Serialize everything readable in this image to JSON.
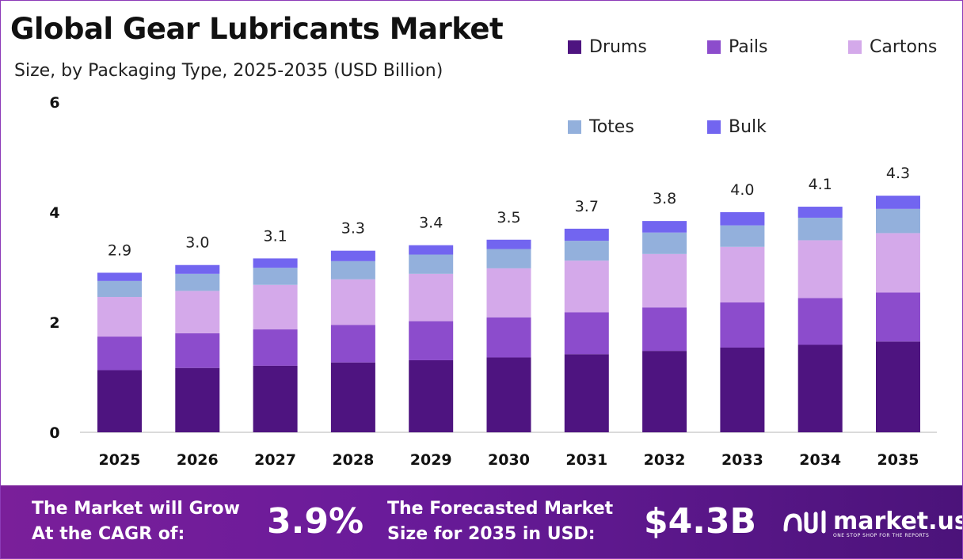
{
  "title": "Global Gear Lubricants Market",
  "subtitle": "Size, by Packaging Type, 2025-2035 (USD Billion)",
  "chart_data": {
    "type": "bar",
    "stacked": true,
    "categories": [
      "2025",
      "2026",
      "2027",
      "2028",
      "2029",
      "2030",
      "2031",
      "2032",
      "2033",
      "2034",
      "2035"
    ],
    "series": [
      {
        "name": "Drums",
        "color": "#4e1480",
        "values": [
          1.13,
          1.17,
          1.21,
          1.27,
          1.31,
          1.36,
          1.42,
          1.48,
          1.54,
          1.59,
          1.65
        ]
      },
      {
        "name": "Pails",
        "color": "#8c4ccc",
        "values": [
          0.61,
          0.63,
          0.66,
          0.68,
          0.71,
          0.73,
          0.76,
          0.79,
          0.82,
          0.85,
          0.89
        ]
      },
      {
        "name": "Cartons",
        "color": "#d4a9ea",
        "values": [
          0.72,
          0.77,
          0.81,
          0.83,
          0.86,
          0.89,
          0.94,
          0.97,
          1.01,
          1.05,
          1.08
        ]
      },
      {
        "name": "Totes",
        "color": "#93b0dc",
        "values": [
          0.29,
          0.31,
          0.31,
          0.33,
          0.35,
          0.35,
          0.36,
          0.39,
          0.39,
          0.41,
          0.44
        ]
      },
      {
        "name": "Bulk",
        "color": "#7265f0",
        "values": [
          0.15,
          0.16,
          0.17,
          0.19,
          0.17,
          0.17,
          0.22,
          0.21,
          0.24,
          0.2,
          0.24
        ]
      }
    ],
    "totals": [
      "2.9",
      "3.0",
      "3.1",
      "3.3",
      "3.4",
      "3.5",
      "3.7",
      "3.8",
      "4.0",
      "4.1",
      "4.3"
    ],
    "ylim": [
      0,
      6
    ],
    "yticks": [
      "0",
      "2",
      "4",
      "6"
    ],
    "legend_position": "top-right",
    "grid": false
  },
  "footer": {
    "cagr_text": "The Market will Grow\nAt the CAGR of:",
    "cagr_value": "3.9%",
    "forecast_text": "The Forecasted Market\nSize for 2035 in USD:",
    "forecast_value": "$4.3B",
    "logo_name": "market.us",
    "logo_tagline": "ONE STOP SHOP FOR THE REPORTS"
  }
}
